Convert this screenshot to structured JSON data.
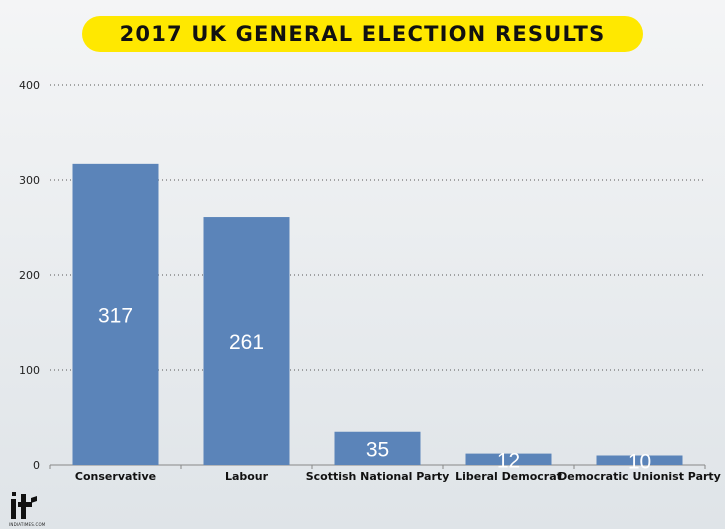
{
  "chart_data": {
    "type": "bar",
    "title": "2017 UK GENERAL ELECTION RESULTS",
    "categories": [
      "Conservative",
      "Labour",
      "Scottish National Party",
      "Liberal Democrat",
      "Democratic Unionist Party"
    ],
    "values": [
      317,
      261,
      35,
      12,
      10
    ],
    "yticks": [
      0,
      100,
      200,
      300,
      400
    ],
    "ylim": [
      0,
      400
    ],
    "grid": true,
    "bar_color": "#5b84b9",
    "grid_color": "#555555"
  },
  "logo": {
    "name": "indiatimes-logo",
    "wordmark": "INDIATIMES.COM"
  }
}
